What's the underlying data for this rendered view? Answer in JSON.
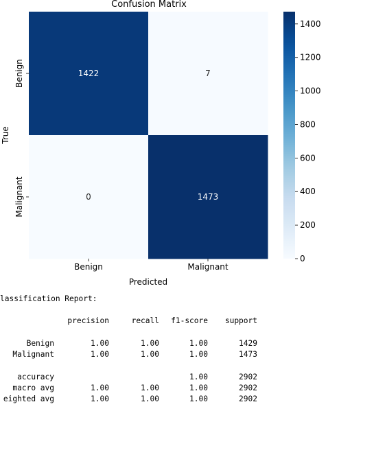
{
  "chart_data": {
    "type": "heatmap",
    "title": "Confusion Matrix",
    "xlabel": "Predicted",
    "ylabel": "True",
    "x_categories": [
      "Benign",
      "Malignant"
    ],
    "y_categories": [
      "Benign",
      "Malignant"
    ],
    "values": [
      [
        1422,
        7
      ],
      [
        0,
        1473
      ]
    ],
    "value_labels": [
      [
        "1422",
        "7"
      ],
      [
        "0",
        "1473"
      ]
    ],
    "colormap": "Blues",
    "colorbar": {
      "vmin": 0,
      "vmax": 1473,
      "ticks": [
        0,
        200,
        400,
        600,
        800,
        1000,
        1200,
        1400
      ],
      "tick_labels": [
        "0",
        "200",
        "400",
        "600",
        "800",
        "1000",
        "1200",
        "1400"
      ]
    },
    "colors": {
      "low": "#f7fbff",
      "high": "#08306b",
      "text_on_dark": "#ffffff",
      "text_on_light": "#262626"
    }
  },
  "report": {
    "heading": "lassification Report:",
    "headers": [
      "precision",
      "recall",
      "f1-score",
      "support"
    ],
    "rows": [
      {
        "label": "Benign",
        "precision": "1.00",
        "recall": "1.00",
        "f1": "1.00",
        "support": "1429"
      },
      {
        "label": "Malignant",
        "precision": "1.00",
        "recall": "1.00",
        "f1": "1.00",
        "support": "1473"
      }
    ],
    "summary": [
      {
        "label": "accuracy",
        "precision": "",
        "recall": "",
        "f1": "1.00",
        "support": "2902"
      },
      {
        "label": "macro avg",
        "precision": "1.00",
        "recall": "1.00",
        "f1": "1.00",
        "support": "2902"
      },
      {
        "label": "eighted avg",
        "precision": "1.00",
        "recall": "1.00",
        "f1": "1.00",
        "support": "2902"
      }
    ]
  }
}
